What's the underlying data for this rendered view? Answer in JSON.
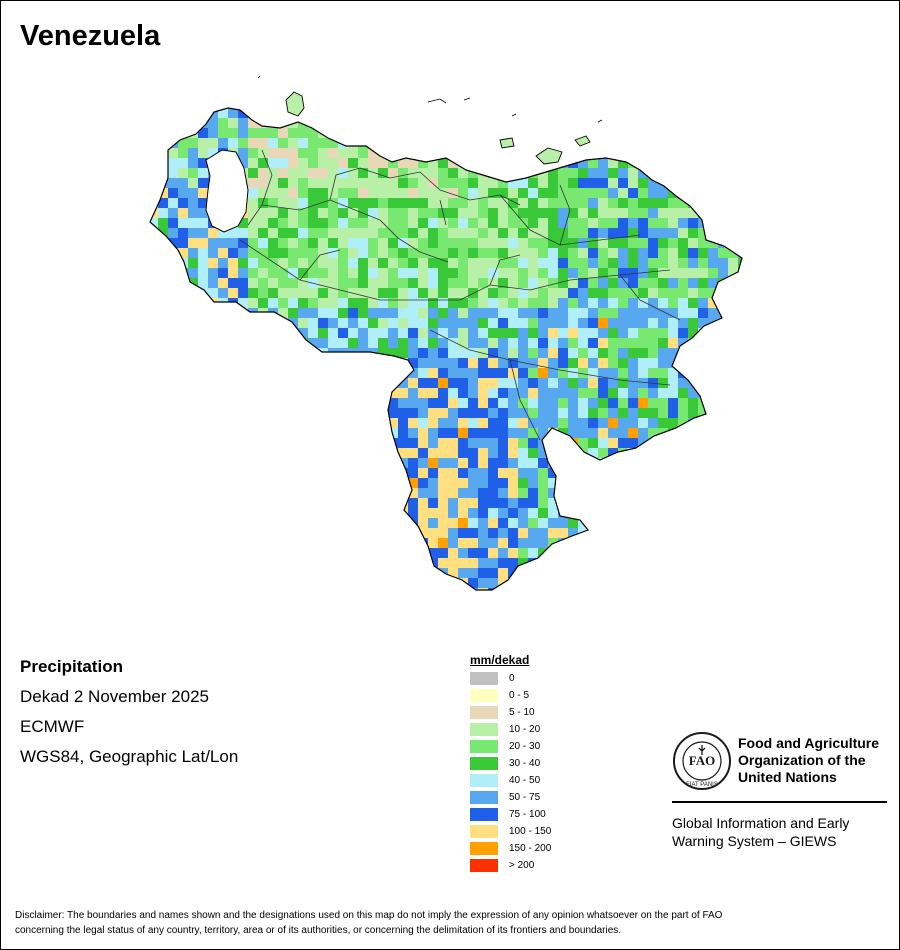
{
  "map": {
    "title": "Venezuela",
    "variable": "Precipitation",
    "period": "Dekad 2 November 2025",
    "source": "ECMWF",
    "projection": "WGS84, Geographic Lat/Lon"
  },
  "legend": {
    "title": "mm/dekad",
    "classes": [
      {
        "label": "0",
        "color": "#c0c0c0"
      },
      {
        "label": "0 - 5",
        "color": "#ffffc0"
      },
      {
        "label": "5 - 10",
        "color": "#e8d8b8"
      },
      {
        "label": "10 - 20",
        "color": "#b8f0a8"
      },
      {
        "label": "20 - 30",
        "color": "#78e870"
      },
      {
        "label": "30 - 40",
        "color": "#38c838"
      },
      {
        "label": "40 - 50",
        "color": "#b0eef8"
      },
      {
        "label": "50 - 75",
        "color": "#58a8f0"
      },
      {
        "label": "75 - 100",
        "color": "#2060e8"
      },
      {
        "label": "100 - 150",
        "color": "#ffe080"
      },
      {
        "label": "150 - 200",
        "color": "#ffa000"
      },
      {
        "label": "> 200",
        "color": "#ff3000"
      }
    ]
  },
  "logo": {
    "org_line1": "Food and Agriculture",
    "org_line2": "Organization of the",
    "org_line3": "United Nations",
    "motto": "FIAT PANIS",
    "giews_line1": "Global Information and Early",
    "giews_line2": "Warning System – GIEWS"
  },
  "disclaimer": {
    "line1": "Disclaimer: The boundaries and names shown and the designations used on this map do not imply the expression of any opinion whatsoever on the part of FAO",
    "line2": "concerning the legal status of any country, territory, area or of its authorities, or concerning the delimitation of its frontiers and boundaries."
  }
}
